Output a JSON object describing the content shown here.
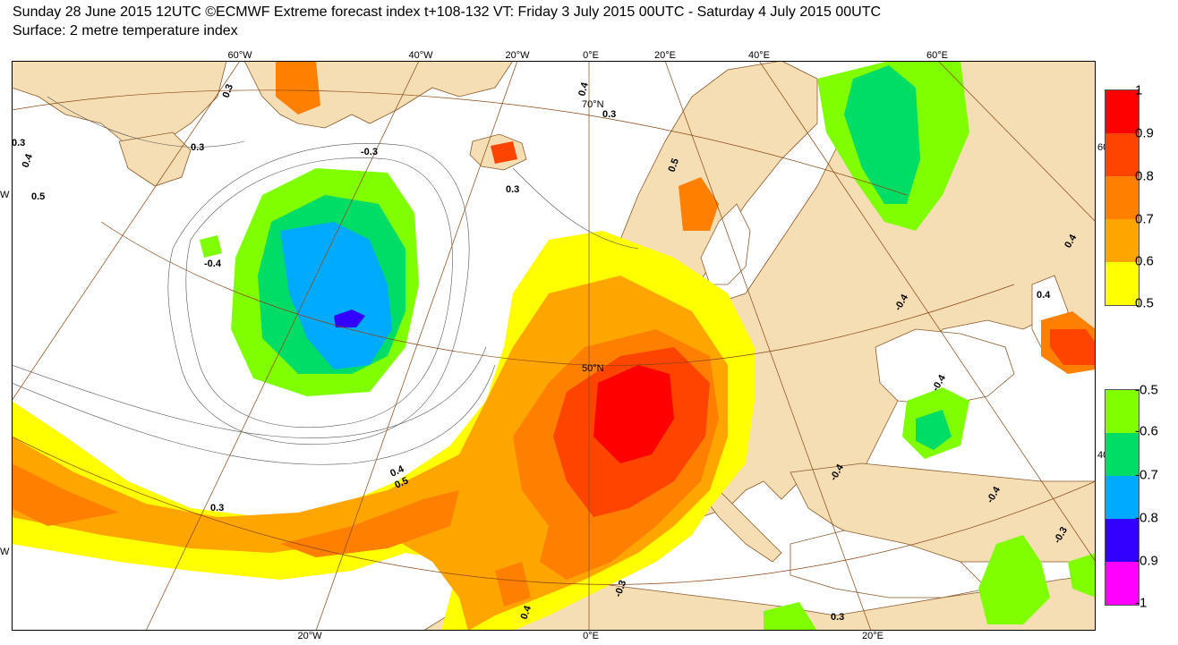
{
  "header": {
    "line1": "Sunday 28 June 2015 12UTC ©ECMWF Extreme forecast index t+108-132 VT: Friday 3 July 2015 00UTC - Saturday 4 July 2015 00UTC",
    "line2": "Surface: 2 metre temperature index"
  },
  "axes": {
    "top_ticks": [
      "60°W",
      "40°W",
      "20°W",
      "0°E",
      "20°E",
      "40°E",
      "60°E"
    ],
    "bottom_ticks": [
      "20°W",
      "0°E",
      "20°E"
    ],
    "right_ticks": [
      "60",
      "40"
    ],
    "left_ticks": [
      "W",
      "W"
    ],
    "inner_labels": [
      "70°N",
      "50°N"
    ]
  },
  "contour_labels": [
    "0.3",
    "0.4",
    "0.5",
    "-0.3",
    "-0.4",
    "0.3",
    "0.3",
    "0.4",
    "0.5",
    "0.3",
    "0.4",
    "-0.4",
    "-0.4",
    "0.4",
    "0.4",
    "-0.4",
    "-0.3",
    "0.3",
    "0.3",
    "0.5",
    "0.4",
    "-0.3",
    "-0.4",
    "0.3"
  ],
  "legend_positive": {
    "labels": [
      "1",
      "0.9",
      "0.8",
      "0.7",
      "0.6",
      "0.5"
    ],
    "colors": [
      "#ff0000",
      "#ff4400",
      "#ff7f00",
      "#ffa500",
      "#ffff00"
    ]
  },
  "legend_negative": {
    "labels": [
      "-0.5",
      "-0.6",
      "-0.7",
      "-0.8",
      "-0.9",
      "-1"
    ],
    "colors": [
      "#7fff00",
      "#00dd66",
      "#00aaff",
      "#3300ff",
      "#ff00ff"
    ]
  },
  "colors": {
    "land": "#f5deb3",
    "ocean": "#ffffff",
    "coast": "#8b5a2b",
    "grid": "#8b4513"
  }
}
